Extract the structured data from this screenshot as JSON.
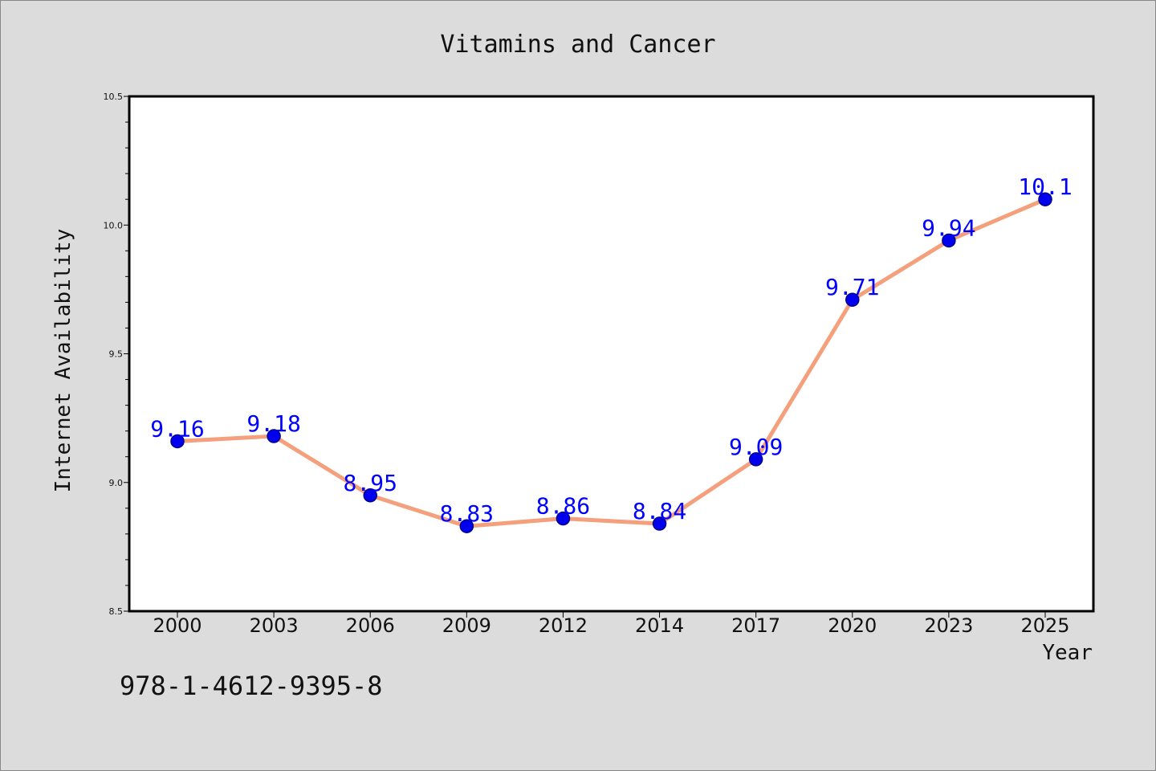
{
  "isbn": "978-1-4612-9395-8",
  "colors": {
    "background": "#dcdcdc",
    "plot_background": "#ffffff",
    "line": "#f4a07c",
    "marker_fill": "#0000ee",
    "marker_edge": "#00008b",
    "data_label": "#0000ff"
  },
  "chart_data": {
    "type": "line",
    "title": "Vitamins and Cancer",
    "xlabel": "Year",
    "ylabel": "Internet Availability",
    "categories": [
      "2000",
      "2003",
      "2006",
      "2009",
      "2012",
      "2014",
      "2017",
      "2020",
      "2023",
      "2025"
    ],
    "series": [
      {
        "values": [
          9.16,
          9.18,
          8.95,
          8.83,
          8.86,
          8.84,
          9.09,
          9.71,
          9.94,
          10.1
        ],
        "data_labels": [
          "9.16",
          "9.18",
          "8.95",
          "8.83",
          "8.86",
          "8.84",
          "9.09",
          "9.71",
          "9.94",
          "10.1"
        ]
      }
    ],
    "ylim": [
      8.5,
      10.5
    ],
    "yticks": [
      "8.5",
      "9.0",
      "9.5",
      "10.0",
      "10.5"
    ],
    "grid": false,
    "legend": "none"
  }
}
